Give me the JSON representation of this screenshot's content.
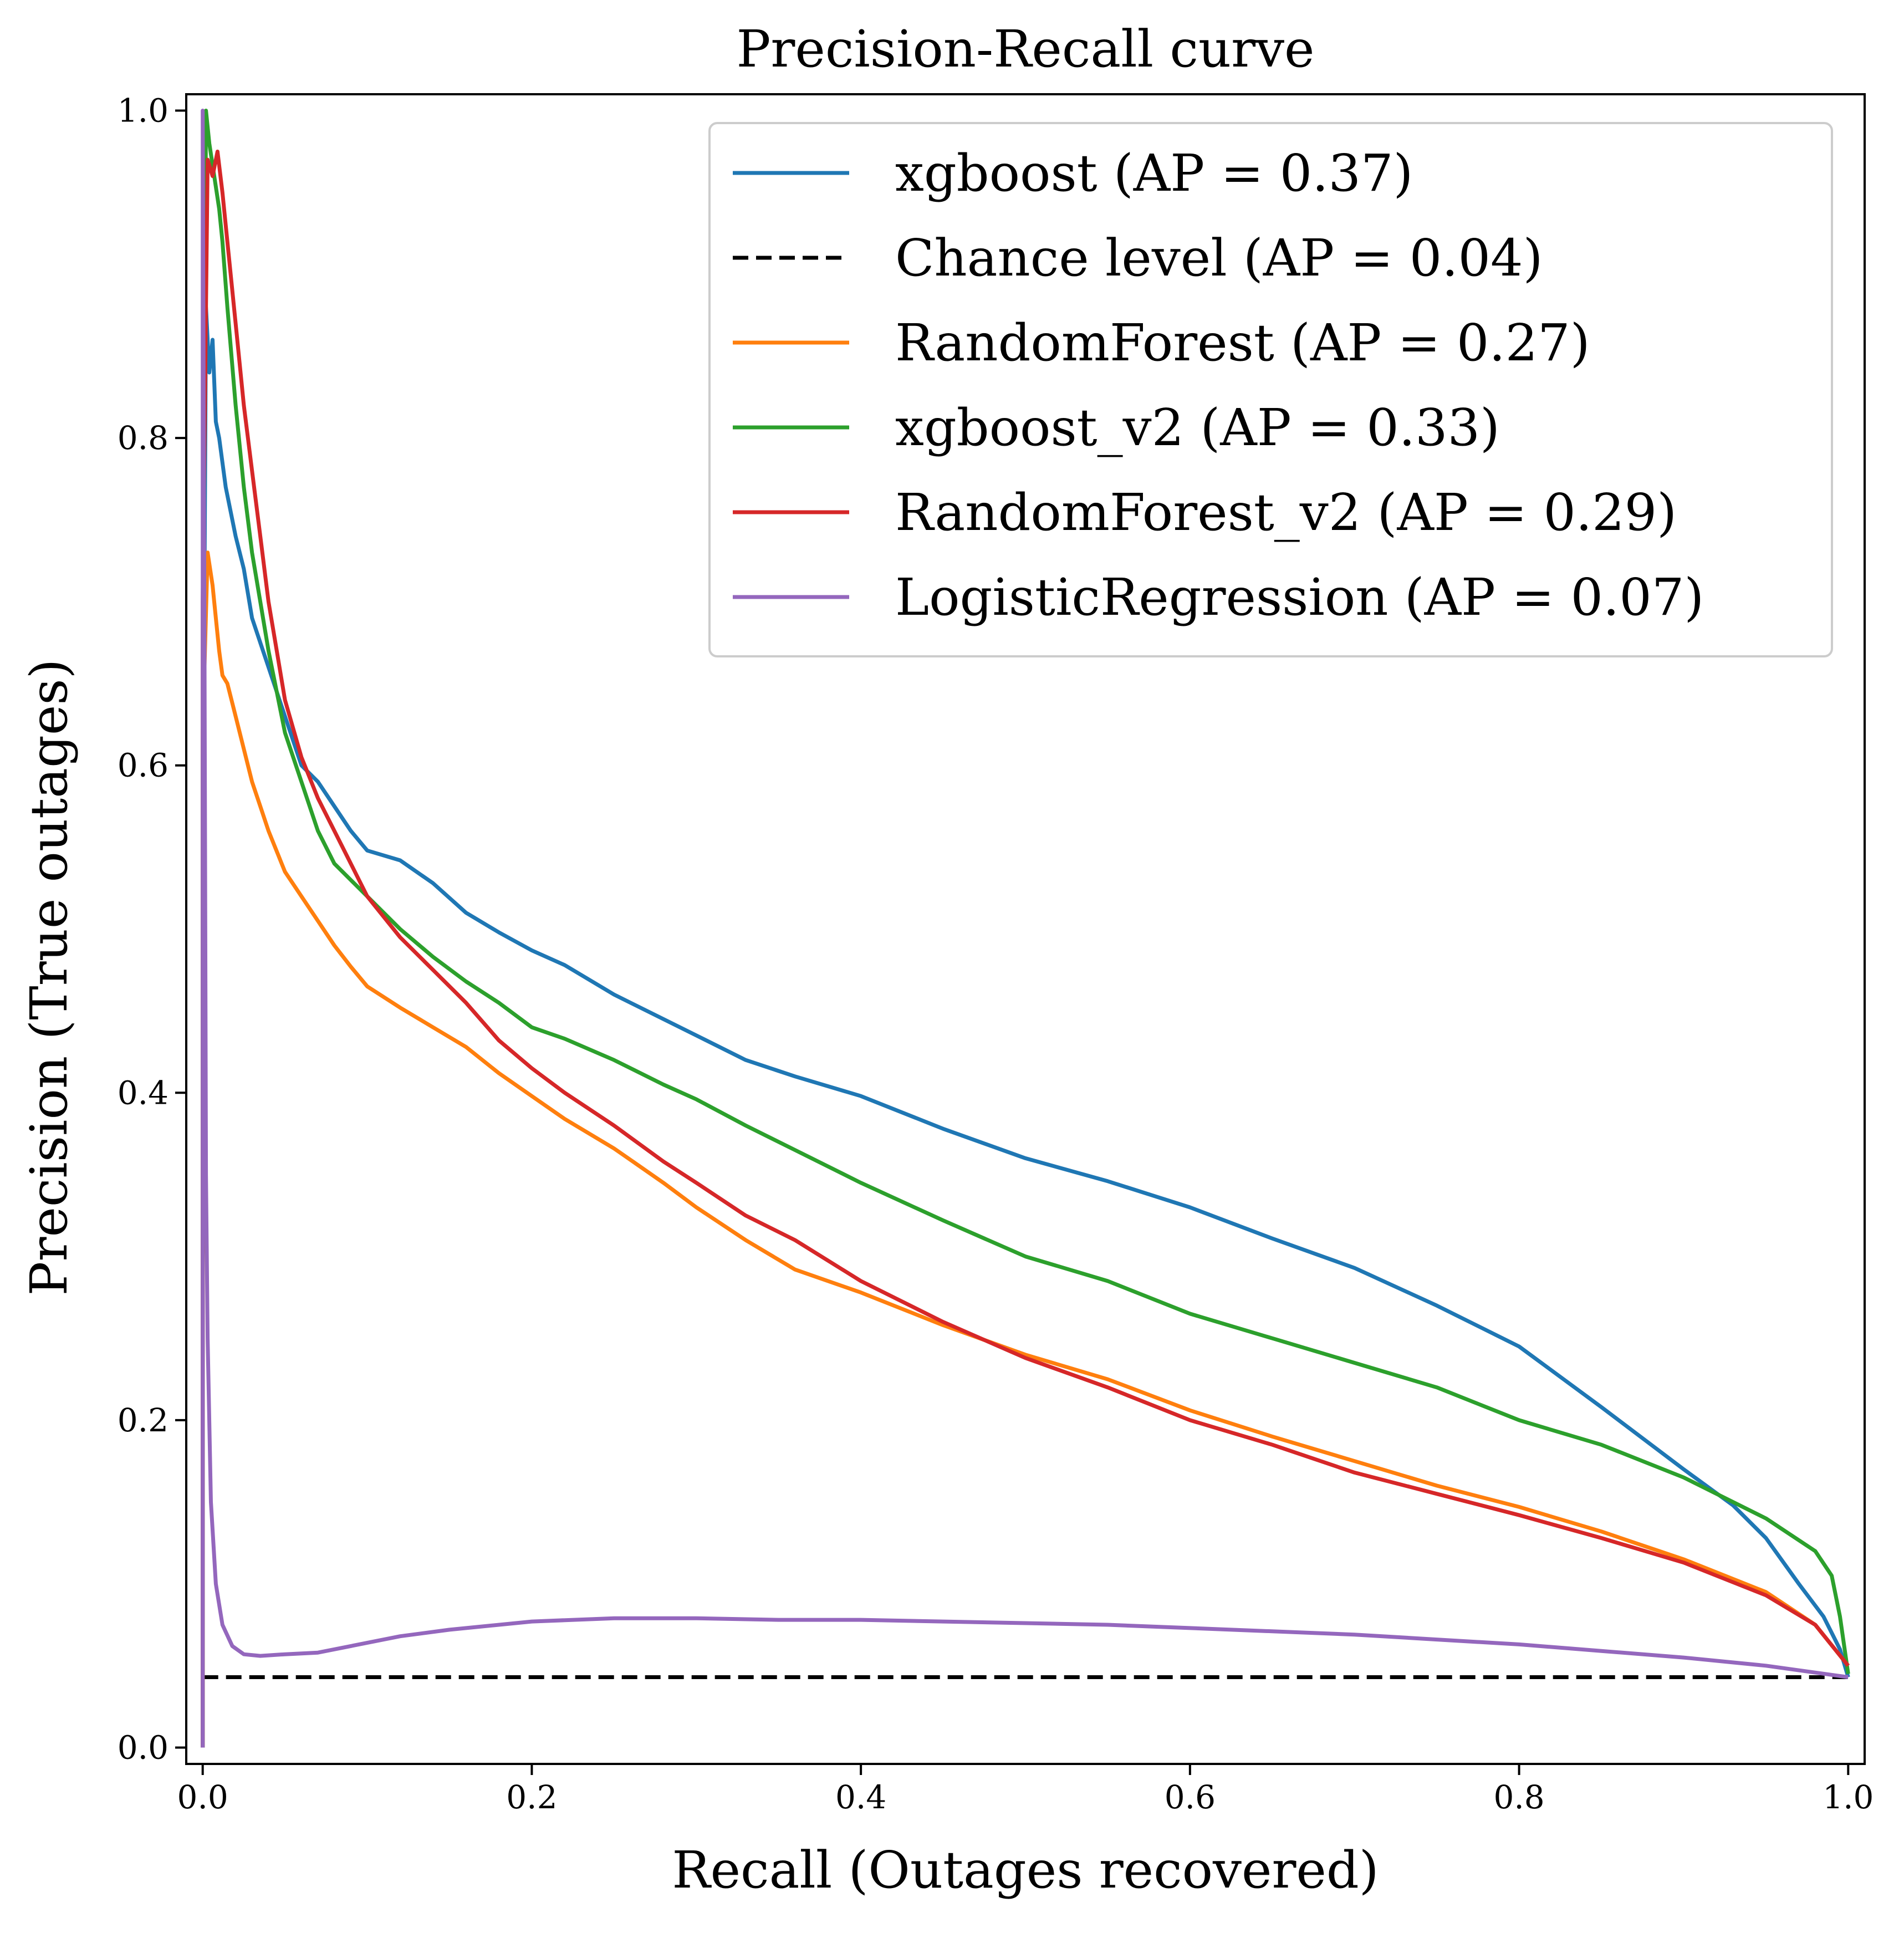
{
  "chart_data": {
    "type": "line",
    "title": "Precision-Recall curve",
    "xlabel": "Recall (Outages recovered)",
    "ylabel": "Precision (True outages)",
    "xlim": [
      -0.01,
      1.01
    ],
    "ylim": [
      -0.01,
      1.01
    ],
    "xticks": [
      0.0,
      0.2,
      0.4,
      0.6,
      0.8,
      1.0
    ],
    "xtick_labels": [
      "0.0",
      "0.2",
      "0.4",
      "0.6",
      "0.8",
      "1.0"
    ],
    "yticks": [
      0.0,
      0.2,
      0.4,
      0.6,
      0.8,
      1.0
    ],
    "ytick_labels": [
      "0.0",
      "0.2",
      "0.4",
      "0.6",
      "0.8",
      "1.0"
    ],
    "grid": false,
    "legend_position": "top-right",
    "series": [
      {
        "name": "xgboost (AP = 0.37)",
        "color": "#1f77b4",
        "dash": "solid",
        "points": [
          [
            0.0,
            0.0
          ],
          [
            0.0,
            0.5
          ],
          [
            0.002,
            0.88
          ],
          [
            0.004,
            0.84
          ],
          [
            0.006,
            0.86
          ],
          [
            0.008,
            0.81
          ],
          [
            0.01,
            0.8
          ],
          [
            0.014,
            0.77
          ],
          [
            0.02,
            0.74
          ],
          [
            0.025,
            0.72
          ],
          [
            0.03,
            0.69
          ],
          [
            0.04,
            0.66
          ],
          [
            0.05,
            0.63
          ],
          [
            0.06,
            0.6
          ],
          [
            0.07,
            0.59
          ],
          [
            0.08,
            0.575
          ],
          [
            0.09,
            0.56
          ],
          [
            0.1,
            0.548
          ],
          [
            0.12,
            0.542
          ],
          [
            0.14,
            0.528
          ],
          [
            0.16,
            0.51
          ],
          [
            0.18,
            0.498
          ],
          [
            0.2,
            0.487
          ],
          [
            0.22,
            0.478
          ],
          [
            0.25,
            0.46
          ],
          [
            0.28,
            0.445
          ],
          [
            0.3,
            0.435
          ],
          [
            0.33,
            0.42
          ],
          [
            0.36,
            0.41
          ],
          [
            0.4,
            0.398
          ],
          [
            0.45,
            0.378
          ],
          [
            0.5,
            0.36
          ],
          [
            0.55,
            0.346
          ],
          [
            0.6,
            0.33
          ],
          [
            0.65,
            0.311
          ],
          [
            0.7,
            0.293
          ],
          [
            0.75,
            0.27
          ],
          [
            0.8,
            0.245
          ],
          [
            0.85,
            0.208
          ],
          [
            0.9,
            0.17
          ],
          [
            0.93,
            0.148
          ],
          [
            0.95,
            0.128
          ],
          [
            0.97,
            0.1
          ],
          [
            0.985,
            0.08
          ],
          [
            0.995,
            0.06
          ],
          [
            1.0,
            0.043
          ]
        ]
      },
      {
        "name": "Chance level (AP = 0.04)",
        "color": "#000000",
        "dash": "dashed",
        "points": [
          [
            0.0,
            0.043
          ],
          [
            1.0,
            0.043
          ]
        ]
      },
      {
        "name": "RandomForest (AP = 0.27)",
        "color": "#ff7f0e",
        "dash": "solid",
        "points": [
          [
            0.0,
            0.0
          ],
          [
            0.0,
            0.62
          ],
          [
            0.003,
            0.73
          ],
          [
            0.006,
            0.71
          ],
          [
            0.008,
            0.69
          ],
          [
            0.01,
            0.67
          ],
          [
            0.012,
            0.655
          ],
          [
            0.015,
            0.65
          ],
          [
            0.02,
            0.63
          ],
          [
            0.025,
            0.61
          ],
          [
            0.03,
            0.59
          ],
          [
            0.035,
            0.575
          ],
          [
            0.04,
            0.56
          ],
          [
            0.05,
            0.535
          ],
          [
            0.06,
            0.52
          ],
          [
            0.07,
            0.505
          ],
          [
            0.08,
            0.49
          ],
          [
            0.09,
            0.477
          ],
          [
            0.1,
            0.465
          ],
          [
            0.12,
            0.452
          ],
          [
            0.14,
            0.44
          ],
          [
            0.16,
            0.428
          ],
          [
            0.18,
            0.412
          ],
          [
            0.2,
            0.398
          ],
          [
            0.22,
            0.384
          ],
          [
            0.25,
            0.366
          ],
          [
            0.28,
            0.345
          ],
          [
            0.3,
            0.33
          ],
          [
            0.33,
            0.31
          ],
          [
            0.36,
            0.292
          ],
          [
            0.4,
            0.278
          ],
          [
            0.45,
            0.258
          ],
          [
            0.5,
            0.24
          ],
          [
            0.55,
            0.225
          ],
          [
            0.6,
            0.206
          ],
          [
            0.65,
            0.19
          ],
          [
            0.7,
            0.175
          ],
          [
            0.75,
            0.16
          ],
          [
            0.8,
            0.147
          ],
          [
            0.85,
            0.132
          ],
          [
            0.9,
            0.115
          ],
          [
            0.95,
            0.095
          ],
          [
            0.98,
            0.075
          ],
          [
            1.0,
            0.05
          ]
        ]
      },
      {
        "name": "xgboost_v2 (AP = 0.33)",
        "color": "#2ca02c",
        "dash": "solid",
        "points": [
          [
            0.0,
            0.0
          ],
          [
            0.0,
            0.6
          ],
          [
            0.002,
            1.0
          ],
          [
            0.004,
            0.98
          ],
          [
            0.007,
            0.96
          ],
          [
            0.01,
            0.94
          ],
          [
            0.012,
            0.92
          ],
          [
            0.015,
            0.88
          ],
          [
            0.02,
            0.82
          ],
          [
            0.025,
            0.77
          ],
          [
            0.03,
            0.73
          ],
          [
            0.035,
            0.7
          ],
          [
            0.04,
            0.67
          ],
          [
            0.05,
            0.62
          ],
          [
            0.06,
            0.59
          ],
          [
            0.07,
            0.56
          ],
          [
            0.08,
            0.54
          ],
          [
            0.1,
            0.52
          ],
          [
            0.12,
            0.5
          ],
          [
            0.14,
            0.483
          ],
          [
            0.16,
            0.468
          ],
          [
            0.18,
            0.455
          ],
          [
            0.2,
            0.44
          ],
          [
            0.22,
            0.433
          ],
          [
            0.25,
            0.42
          ],
          [
            0.28,
            0.405
          ],
          [
            0.3,
            0.396
          ],
          [
            0.33,
            0.38
          ],
          [
            0.36,
            0.365
          ],
          [
            0.4,
            0.345
          ],
          [
            0.45,
            0.322
          ],
          [
            0.5,
            0.3
          ],
          [
            0.55,
            0.285
          ],
          [
            0.6,
            0.265
          ],
          [
            0.65,
            0.25
          ],
          [
            0.7,
            0.235
          ],
          [
            0.75,
            0.22
          ],
          [
            0.8,
            0.2
          ],
          [
            0.85,
            0.185
          ],
          [
            0.9,
            0.165
          ],
          [
            0.95,
            0.14
          ],
          [
            0.98,
            0.12
          ],
          [
            0.99,
            0.105
          ],
          [
            0.995,
            0.08
          ],
          [
            1.0,
            0.045
          ]
        ]
      },
      {
        "name": "RandomForest_v2 (AP = 0.29)",
        "color": "#d62728",
        "dash": "solid",
        "points": [
          [
            0.0,
            0.0
          ],
          [
            0.0,
            0.7
          ],
          [
            0.003,
            0.97
          ],
          [
            0.006,
            0.96
          ],
          [
            0.009,
            0.975
          ],
          [
            0.012,
            0.95
          ],
          [
            0.015,
            0.92
          ],
          [
            0.02,
            0.87
          ],
          [
            0.025,
            0.82
          ],
          [
            0.03,
            0.78
          ],
          [
            0.035,
            0.74
          ],
          [
            0.04,
            0.7
          ],
          [
            0.045,
            0.67
          ],
          [
            0.05,
            0.64
          ],
          [
            0.06,
            0.605
          ],
          [
            0.07,
            0.58
          ],
          [
            0.08,
            0.56
          ],
          [
            0.09,
            0.54
          ],
          [
            0.1,
            0.52
          ],
          [
            0.12,
            0.495
          ],
          [
            0.14,
            0.475
          ],
          [
            0.16,
            0.455
          ],
          [
            0.18,
            0.432
          ],
          [
            0.2,
            0.415
          ],
          [
            0.22,
            0.4
          ],
          [
            0.25,
            0.38
          ],
          [
            0.28,
            0.358
          ],
          [
            0.3,
            0.345
          ],
          [
            0.33,
            0.325
          ],
          [
            0.36,
            0.31
          ],
          [
            0.4,
            0.285
          ],
          [
            0.45,
            0.26
          ],
          [
            0.5,
            0.238
          ],
          [
            0.55,
            0.22
          ],
          [
            0.6,
            0.2
          ],
          [
            0.65,
            0.185
          ],
          [
            0.7,
            0.168
          ],
          [
            0.75,
            0.155
          ],
          [
            0.8,
            0.142
          ],
          [
            0.85,
            0.128
          ],
          [
            0.9,
            0.113
          ],
          [
            0.95,
            0.093
          ],
          [
            0.98,
            0.075
          ],
          [
            1.0,
            0.05
          ]
        ]
      },
      {
        "name": "LogisticRegression (AP = 0.07)",
        "color": "#9467bd",
        "dash": "solid",
        "points": [
          [
            0.0,
            0.0
          ],
          [
            0.0,
            1.0
          ],
          [
            0.001,
            0.7
          ],
          [
            0.002,
            0.35
          ],
          [
            0.003,
            0.25
          ],
          [
            0.005,
            0.15
          ],
          [
            0.008,
            0.1
          ],
          [
            0.012,
            0.075
          ],
          [
            0.018,
            0.062
          ],
          [
            0.025,
            0.057
          ],
          [
            0.035,
            0.056
          ],
          [
            0.05,
            0.057
          ],
          [
            0.07,
            0.058
          ],
          [
            0.09,
            0.062
          ],
          [
            0.12,
            0.068
          ],
          [
            0.15,
            0.072
          ],
          [
            0.2,
            0.077
          ],
          [
            0.25,
            0.079
          ],
          [
            0.3,
            0.079
          ],
          [
            0.35,
            0.078
          ],
          [
            0.4,
            0.078
          ],
          [
            0.45,
            0.077
          ],
          [
            0.5,
            0.076
          ],
          [
            0.55,
            0.075
          ],
          [
            0.6,
            0.073
          ],
          [
            0.65,
            0.071
          ],
          [
            0.7,
            0.069
          ],
          [
            0.75,
            0.066
          ],
          [
            0.8,
            0.063
          ],
          [
            0.85,
            0.059
          ],
          [
            0.9,
            0.055
          ],
          [
            0.95,
            0.05
          ],
          [
            1.0,
            0.043
          ]
        ]
      }
    ]
  }
}
